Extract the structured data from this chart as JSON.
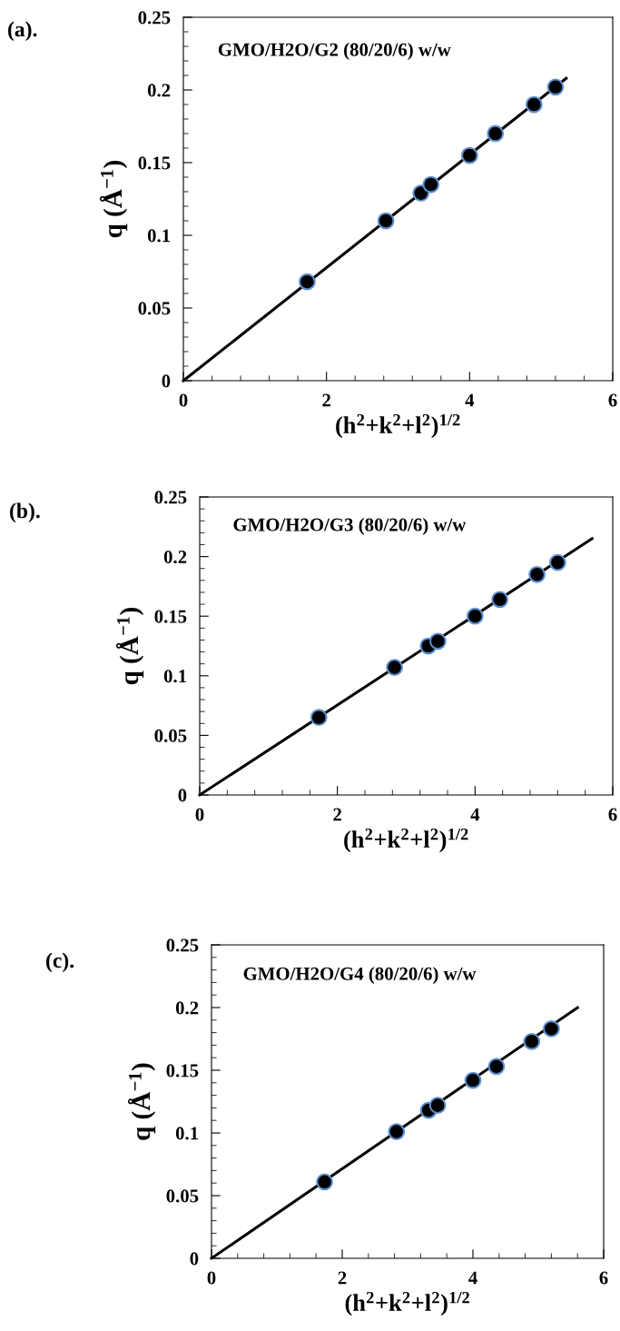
{
  "chart_data": [
    {
      "type": "scatter",
      "title": "GMO/H2O/G2 (80/20/6) w/w",
      "xlabel": "(h$^{2}$+k$^{2}$+l$^{2}$)$^{1/2}$",
      "ylabel": "q (Å$^{−1}$)",
      "annotations": [
        "(a)."
      ],
      "xlim": [
        0,
        6
      ],
      "xticks": [
        0,
        2,
        4,
        6
      ],
      "ylim": [
        0,
        0.25
      ],
      "yticks": [
        0,
        0.05,
        0.1,
        0.15,
        0.2,
        0.25
      ],
      "grid": false,
      "legend": false,
      "series": [
        {
          "marker": "circle",
          "color": "#000000",
          "x": [
            1.73,
            2.83,
            3.32,
            3.46,
            4.0,
            4.36,
            4.9,
            5.2
          ],
          "values": [
            0.068,
            0.11,
            0.129,
            0.135,
            0.155,
            0.17,
            0.19,
            0.202
          ]
        },
        {
          "type": "line",
          "marker": "none",
          "line_style": "solid",
          "color": "#000000",
          "x": [
            0,
            5.35
          ],
          "values": [
            0,
            0.208
          ]
        }
      ]
    },
    {
      "type": "scatter",
      "title": "GMO/H2O/G3 (80/20/6) w/w",
      "xlabel": "(h$^{2}$+k$^{2}$+l$^{2}$)$^{1/2}$",
      "ylabel": "q (Å$^{−1}$)",
      "annotations": [
        "(b)."
      ],
      "xlim": [
        0,
        6
      ],
      "xticks": [
        0,
        2,
        4,
        6
      ],
      "ylim": [
        0,
        0.25
      ],
      "yticks": [
        0,
        0.05,
        0.1,
        0.15,
        0.2,
        0.25
      ],
      "grid": false,
      "legend": false,
      "series": [
        {
          "marker": "circle",
          "color": "#000000",
          "x": [
            1.73,
            2.83,
            3.32,
            3.46,
            4.0,
            4.36,
            4.9,
            5.2
          ],
          "values": [
            0.065,
            0.107,
            0.125,
            0.129,
            0.15,
            0.164,
            0.185,
            0.195
          ]
        },
        {
          "type": "line",
          "marker": "none",
          "line_style": "solid",
          "color": "#000000",
          "x": [
            0,
            5.7
          ],
          "values": [
            0,
            0.215
          ]
        }
      ]
    },
    {
      "type": "scatter",
      "title": "GMO/H2O/G4 (80/20/6) w/w",
      "xlabel": "(h$^{2}$+k$^{2}$+l$^{2}$)$^{1/2}$",
      "ylabel": "q (Å$^{−1}$)",
      "annotations": [
        "(c)."
      ],
      "xlim": [
        0,
        6
      ],
      "xticks": [
        0,
        2,
        4,
        6
      ],
      "ylim": [
        0,
        0.25
      ],
      "yticks": [
        0,
        0.05,
        0.1,
        0.15,
        0.2,
        0.25
      ],
      "grid": false,
      "legend": false,
      "series": [
        {
          "marker": "circle",
          "color": "#000000",
          "x": [
            1.73,
            2.83,
            3.32,
            3.46,
            4.0,
            4.36,
            4.9,
            5.2
          ],
          "values": [
            0.061,
            0.101,
            0.118,
            0.122,
            0.142,
            0.153,
            0.173,
            0.183
          ]
        },
        {
          "type": "line",
          "marker": "none",
          "line_style": "solid",
          "color": "#000000",
          "x": [
            0,
            5.6
          ],
          "values": [
            0,
            0.2
          ]
        }
      ]
    }
  ]
}
